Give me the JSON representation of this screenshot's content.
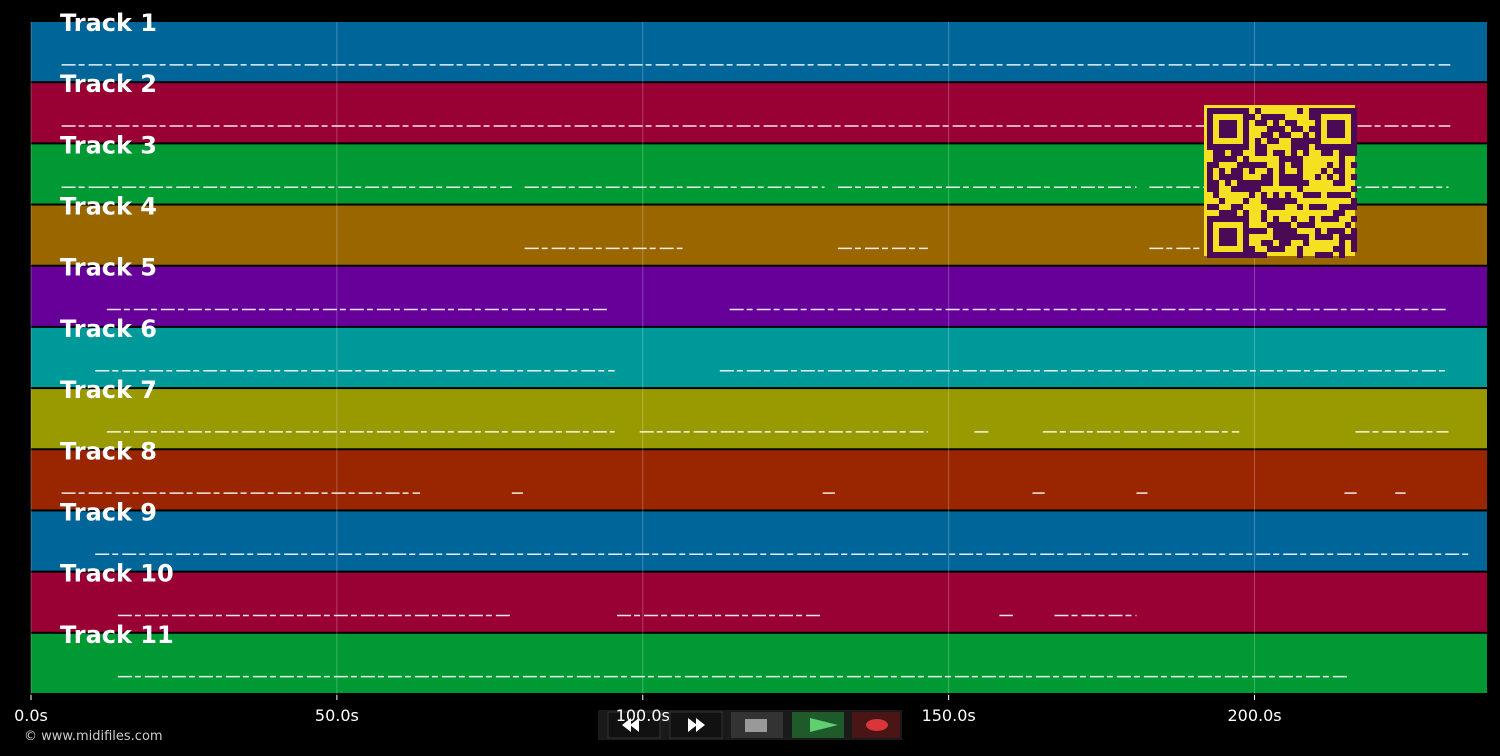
{
  "tracks": [
    {
      "name": "Track 1",
      "color": "#006699",
      "segments": [
        [
          5,
          232
        ]
      ]
    },
    {
      "name": "Track 2",
      "color": "#990033",
      "segments": [
        [
          5,
          232
        ]
      ]
    },
    {
      "name": "Track 3",
      "color": "#009933",
      "segments": [
        [
          5,
          10.5
        ],
        [
          10.5,
          78.6
        ],
        [
          80.7,
          129.7
        ],
        [
          131.9,
          180.7
        ],
        [
          182.8,
          231.7
        ]
      ]
    },
    {
      "name": "Track 4",
      "color": "#996600",
      "segments": [
        [
          80.7,
          106.5
        ],
        [
          131.9,
          146.6
        ],
        [
          182.8,
          191
        ]
      ]
    },
    {
      "name": "Track 5",
      "color": "#660099",
      "segments": [
        [
          12.4,
          94.6
        ],
        [
          114.2,
          231.7
        ]
      ]
    },
    {
      "name": "Track 6",
      "color": "#009999",
      "segments": [
        [
          10.5,
          95.4
        ],
        [
          112.6,
          231.7
        ]
      ]
    },
    {
      "name": "Track 7",
      "color": "#999900",
      "segments": [
        [
          12.4,
          95.4
        ],
        [
          99.5,
          146.6
        ],
        [
          154.2,
          156.7
        ],
        [
          165.4,
          197.5
        ],
        [
          216.5,
          231.7
        ]
      ]
    },
    {
      "name": "Track 8",
      "color": "#992600",
      "segments": [
        [
          5,
          63.6
        ],
        [
          78.6,
          80.4
        ],
        [
          129.4,
          131.4
        ],
        [
          163.7,
          165.7
        ],
        [
          180.7,
          182.5
        ],
        [
          214.7,
          216.7
        ],
        [
          223,
          224.7
        ]
      ]
    },
    {
      "name": "Track 9",
      "color": "#006699",
      "segments": [
        [
          10.5,
          235.5
        ]
      ]
    },
    {
      "name": "Track 10",
      "color": "#990033",
      "segments": [
        [
          14.2,
          78.6
        ],
        [
          95.8,
          129.4
        ],
        [
          158.3,
          160.5
        ],
        [
          167.3,
          180.7
        ]
      ]
    },
    {
      "name": "Track 11",
      "color": "#009933",
      "segments": [
        [
          14.2,
          215.2
        ]
      ]
    }
  ],
  "timeline": {
    "xlim": [
      0,
      238
    ],
    "xticks": [
      {
        "value": 0,
        "label": "0.0s"
      },
      {
        "value": 50,
        "label": "50.0s"
      },
      {
        "value": 100,
        "label": "100.0s"
      },
      {
        "value": 150,
        "label": "150.0s"
      },
      {
        "value": 200,
        "label": "200.0s"
      }
    ]
  },
  "footer": "© www.midifiles.com"
}
